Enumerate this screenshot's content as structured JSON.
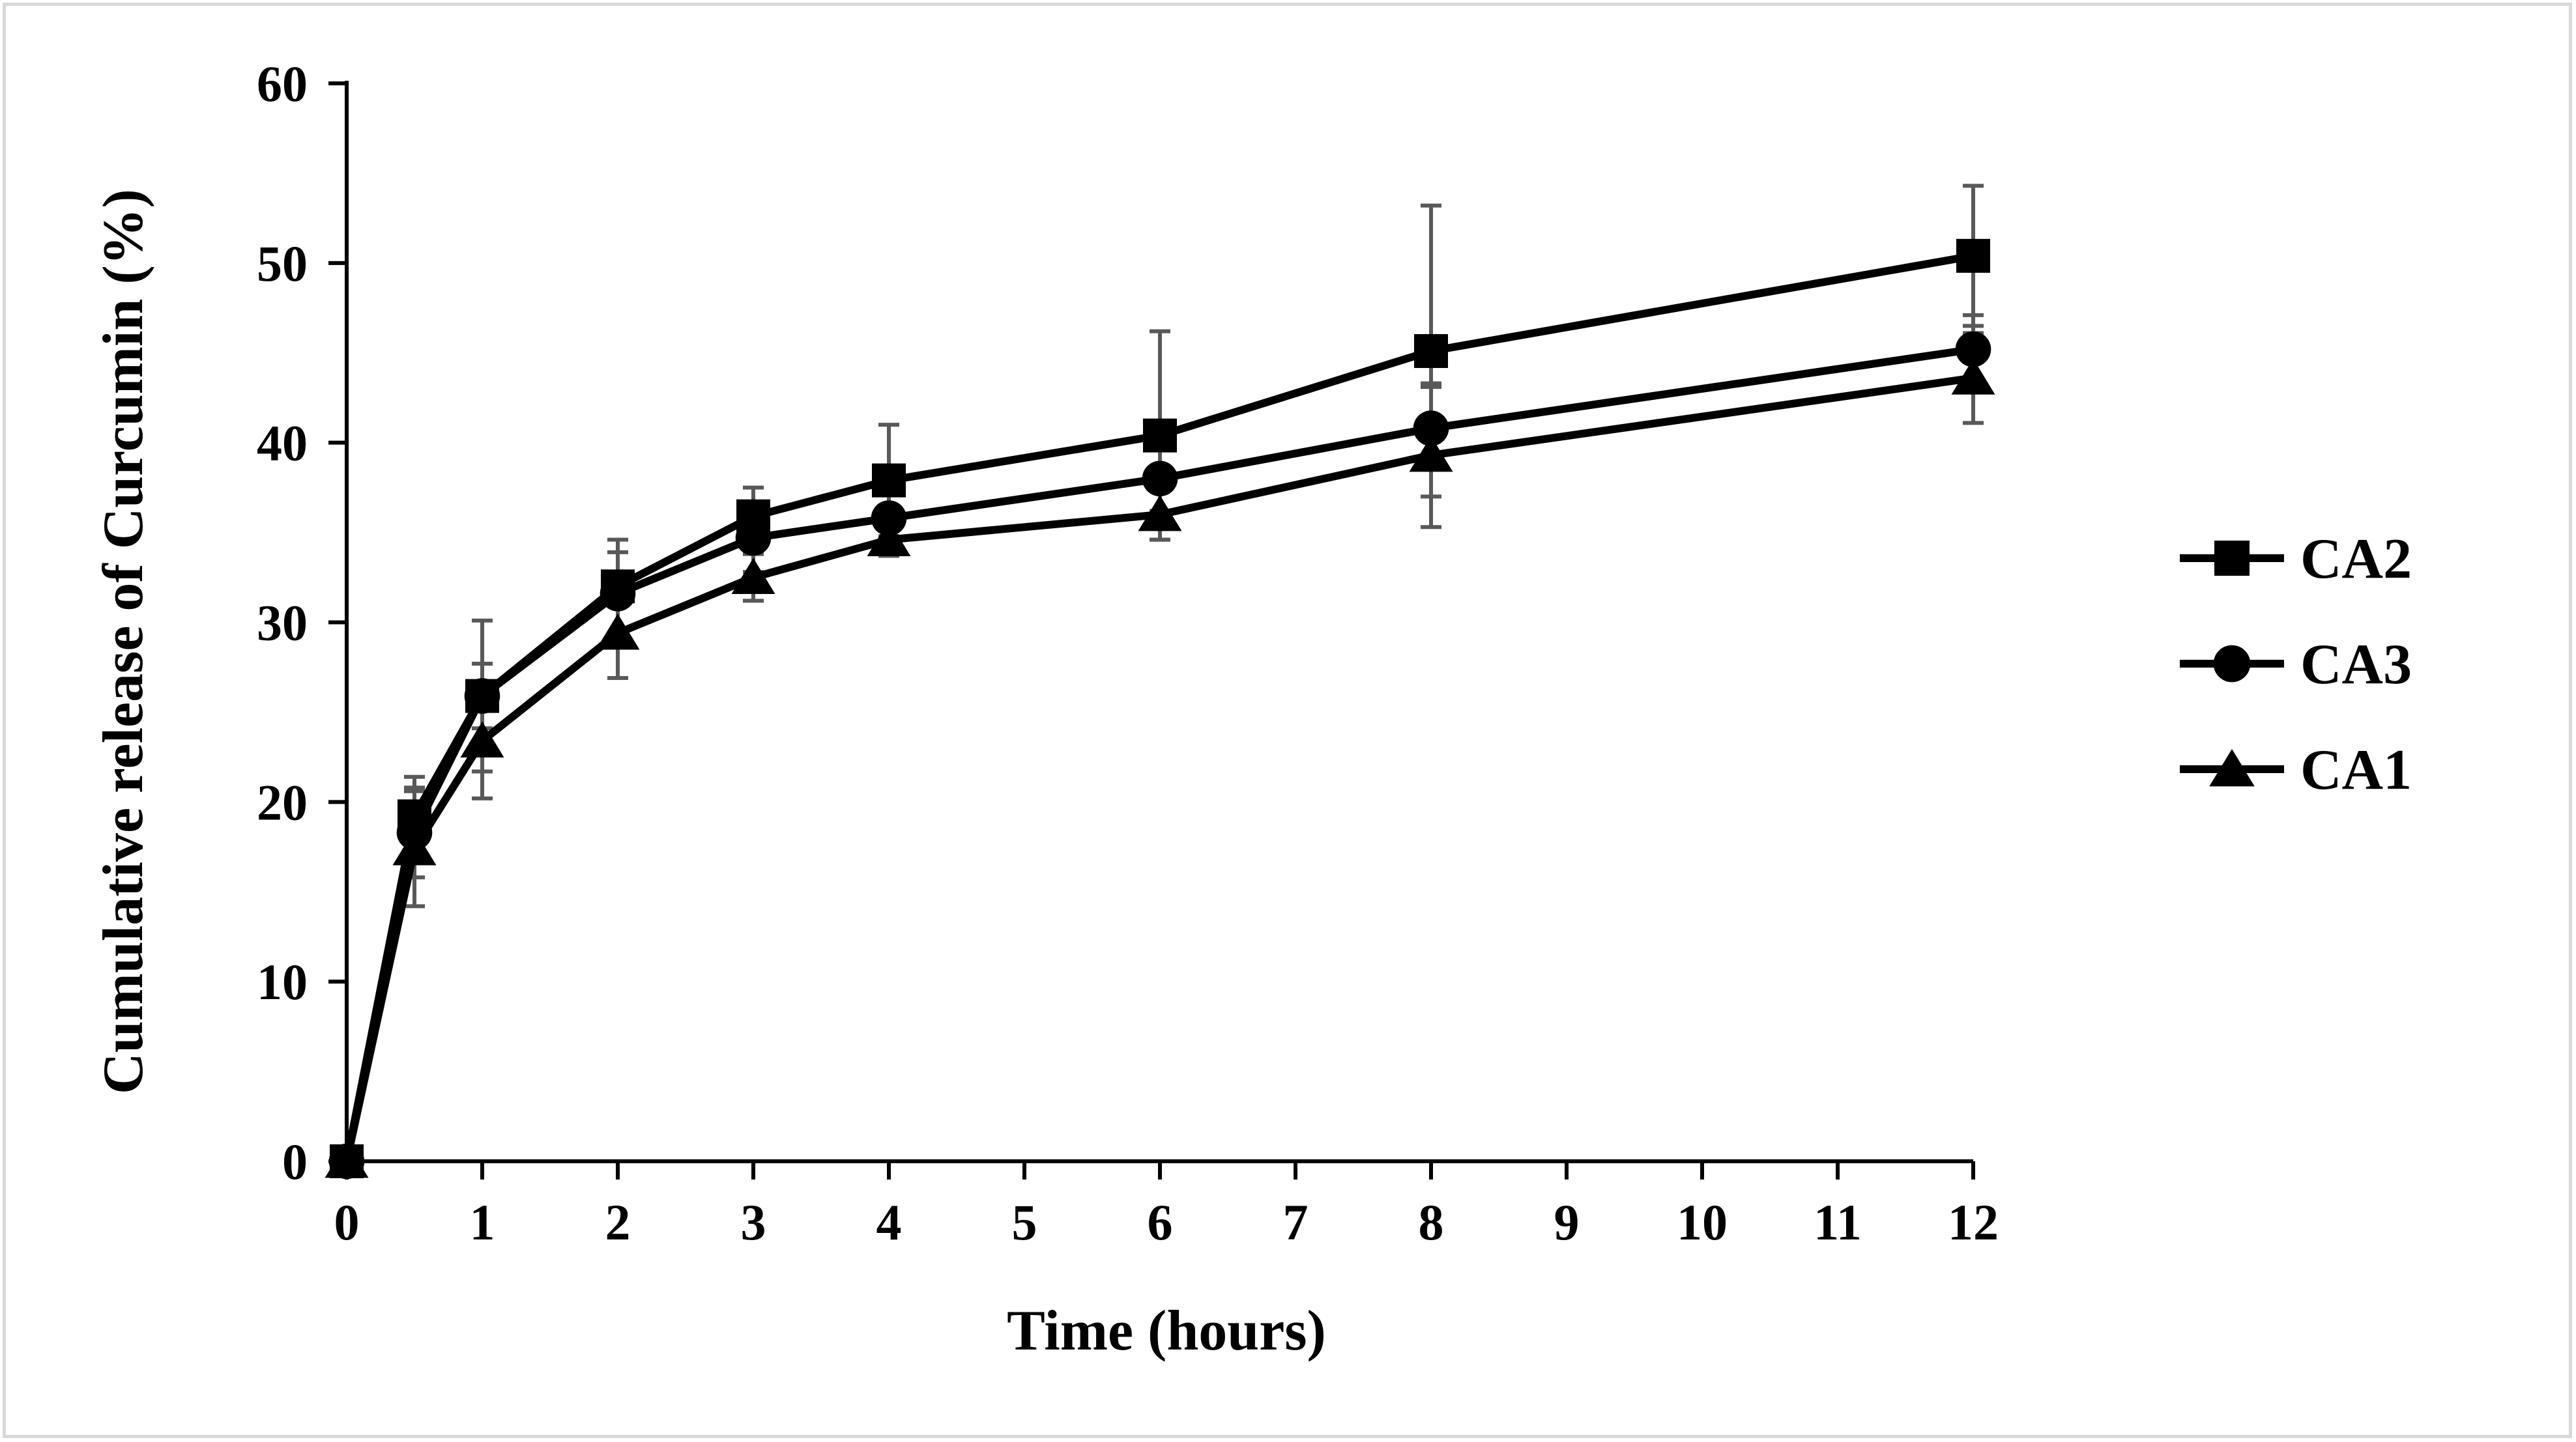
{
  "chart_data": {
    "type": "line",
    "title": "",
    "xlabel": "Time (hours)",
    "ylabel": "Cumulative release of Curcumin (%)",
    "xlim": [
      0,
      12
    ],
    "ylim": [
      0,
      60
    ],
    "x_ticks": [
      0,
      1,
      2,
      3,
      4,
      5,
      6,
      7,
      8,
      9,
      10,
      11,
      12
    ],
    "y_ticks": [
      0,
      10,
      20,
      30,
      40,
      50,
      60
    ],
    "x": [
      0,
      0.5,
      1,
      2,
      3,
      4,
      6,
      8,
      12
    ],
    "legend_position": "right",
    "series": [
      {
        "name": "CA2",
        "marker": "square",
        "values": [
          0,
          19.2,
          25.9,
          32.0,
          35.9,
          37.9,
          40.4,
          45.1,
          50.4
        ],
        "error": [
          0,
          2.2,
          4.2,
          2.6,
          1.6,
          3.1,
          5.8,
          8.1,
          3.9
        ]
      },
      {
        "name": "CA3",
        "marker": "circle",
        "values": [
          0,
          18.3,
          25.9,
          31.6,
          34.7,
          35.8,
          38.0,
          40.8,
          45.2
        ],
        "error": [
          0,
          2.5,
          1.8,
          2.3,
          1.9,
          1.6,
          1.8,
          2.3,
          1.9
        ]
      },
      {
        "name": "CA1",
        "marker": "triangle",
        "values": [
          0,
          17.4,
          23.4,
          29.4,
          32.5,
          34.6,
          36.0,
          39.3,
          43.6
        ],
        "error": [
          0,
          3.2,
          3.2,
          2.5,
          1.3,
          0.9,
          1.4,
          4.0,
          2.5
        ]
      }
    ],
    "colors": {
      "line": "#000000",
      "error_bar": "#595959",
      "axis": "#000000",
      "frame": "#d9d9d9"
    }
  }
}
